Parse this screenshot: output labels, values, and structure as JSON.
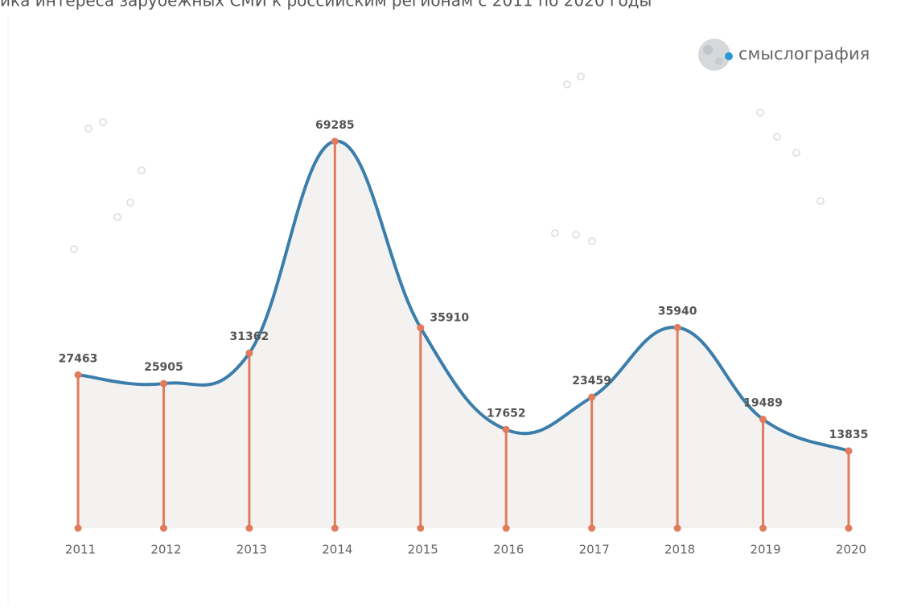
{
  "chart_data": {
    "type": "line",
    "title": "ика интереса зарубежных СМИ к российским регионам с 2011 по 2020 годы",
    "brand": "смыслография",
    "categories": [
      "2011",
      "2012",
      "2013",
      "2014",
      "2015",
      "2016",
      "2017",
      "2018",
      "2019",
      "2020"
    ],
    "values": [
      27463,
      25905,
      31362,
      69285,
      35910,
      17652,
      23459,
      35940,
      19489,
      13835
    ],
    "color": "#3b7eab",
    "stem_color": "#e07c5c",
    "ylim": [
      0,
      92000
    ]
  }
}
